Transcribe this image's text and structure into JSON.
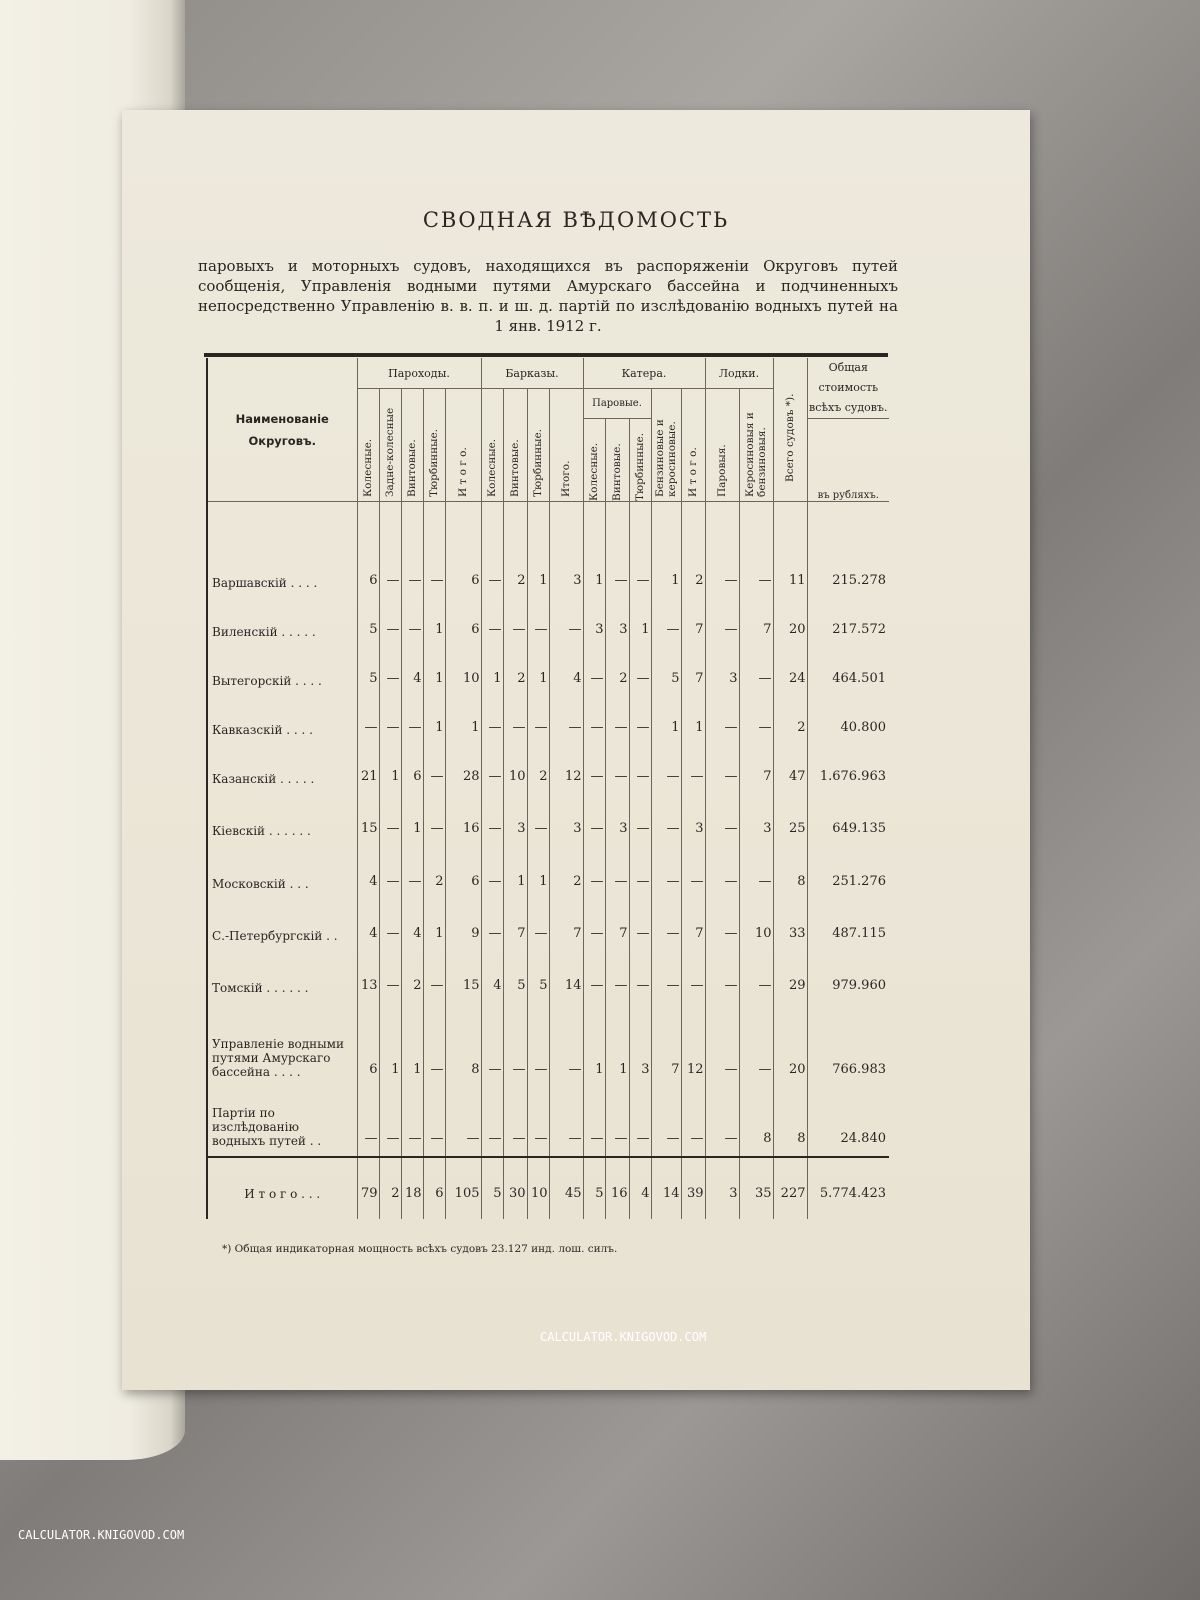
{
  "document": {
    "title": "СВОДНАЯ ВѢДОМОСТЬ",
    "subtitle": "паровыхъ и моторныхъ судовъ, находящихся въ распоряженiи Округовъ путей сообщенiя, Управленiя водными путями Амурскаго бассейна и подчиненныхъ непосредственно Управленiю в. в. п. и ш. д. партiй по изслѣдованiю водныхъ путей на 1 янв. 1912 г.",
    "footnote": "*) Общая индикаторная мощность всѣхъ судовъ 23.127 инд. лош. силъ."
  },
  "table": {
    "name_header": "Наименованiе Округовъ.",
    "groups": {
      "steamers": "Пароходы.",
      "barges": "Барказы.",
      "launches": "Катера.",
      "launches_steam": "Паровые.",
      "boats": "Лодки."
    },
    "columns": [
      "Колесные.",
      "Задне-колесные",
      "Винтовые.",
      "Тюрбинные.",
      "И т о г о.",
      "Колесные.",
      "Винтовые.",
      "Тюрбинные.",
      "Итого.",
      "Колесные.",
      "Винтовые.",
      "Тюрбинные.",
      "Бензиновые и керосиновые.",
      "И т о г о.",
      "Паровыя.",
      "Керосиновыя и бензиновыя.",
      "Всего судовъ *)."
    ],
    "cost_header": "Общая стоимость всѣхъ судовъ.",
    "cost_unit": "въ рубляхъ.",
    "rows": [
      {
        "name": "Варшавскiй . . . .",
        "values": [
          "6",
          "—",
          "—",
          "—",
          "6",
          "—",
          "2",
          "1",
          "3",
          "1",
          "—",
          "—",
          "1",
          "2",
          "—",
          "—",
          "11"
        ],
        "cost": "215.278"
      },
      {
        "name": "Виленскiй . . . . .",
        "values": [
          "5",
          "—",
          "—",
          "1",
          "6",
          "—",
          "—",
          "—",
          "—",
          "3",
          "3",
          "1",
          "—",
          "7",
          "—",
          "7",
          "20"
        ],
        "cost": "217.572"
      },
      {
        "name": "Вытегорскiй . . . .",
        "values": [
          "5",
          "—",
          "4",
          "1",
          "10",
          "1",
          "2",
          "1",
          "4",
          "—",
          "2",
          "—",
          "5",
          "7",
          "3",
          "—",
          "24"
        ],
        "cost": "464.501"
      },
      {
        "name": "Кавказскiй . . . .",
        "values": [
          "—",
          "—",
          "—",
          "1",
          "1",
          "—",
          "—",
          "—",
          "—",
          "—",
          "—",
          "—",
          "1",
          "1",
          "—",
          "—",
          "2"
        ],
        "cost": "40.800"
      },
      {
        "name": "Казанскiй . . . . .",
        "values": [
          "21",
          "1",
          "6",
          "—",
          "28",
          "—",
          "10",
          "2",
          "12",
          "—",
          "—",
          "—",
          "—",
          "—",
          "—",
          "7",
          "47"
        ],
        "cost": "1.676.963"
      },
      {
        "name": "Кiевскiй . . . . . .",
        "values": [
          "15",
          "—",
          "1",
          "—",
          "16",
          "—",
          "3",
          "—",
          "3",
          "—",
          "3",
          "—",
          "—",
          "3",
          "—",
          "3",
          "25"
        ],
        "cost": "649.135"
      },
      {
        "name": "Московскiй . . .",
        "values": [
          "4",
          "—",
          "—",
          "2",
          "6",
          "—",
          "1",
          "1",
          "2",
          "—",
          "—",
          "—",
          "—",
          "—",
          "—",
          "—",
          "8"
        ],
        "cost": "251.276"
      },
      {
        "name": "С.-Петербургскiй . .",
        "values": [
          "4",
          "—",
          "4",
          "1",
          "9",
          "—",
          "7",
          "—",
          "7",
          "—",
          "7",
          "—",
          "—",
          "7",
          "—",
          "10",
          "33"
        ],
        "cost": "487.115"
      },
      {
        "name": "Томскiй . . . . . .",
        "values": [
          "13",
          "—",
          "2",
          "—",
          "15",
          "4",
          "5",
          "5",
          "14",
          "—",
          "—",
          "—",
          "—",
          "—",
          "—",
          "—",
          "29"
        ],
        "cost": "979.960"
      },
      {
        "name": "Управленiе водными путями Амурскаго бассейна . . . .",
        "values": [
          "6",
          "1",
          "1",
          "—",
          "8",
          "—",
          "—",
          "—",
          "—",
          "1",
          "1",
          "3",
          "7",
          "12",
          "—",
          "—",
          "20"
        ],
        "cost": "766.983"
      },
      {
        "name": "Партiи по изслѣдованiю водныхъ путей . .",
        "values": [
          "—",
          "—",
          "—",
          "—",
          "—",
          "—",
          "—",
          "—",
          "—",
          "—",
          "—",
          "—",
          "—",
          "—",
          "—",
          "8",
          "8"
        ],
        "cost": "24.840"
      }
    ],
    "total": {
      "name": "И т о г о . . .",
      "values": [
        "79",
        "2",
        "18",
        "6",
        "105",
        "5",
        "30",
        "10",
        "45",
        "5",
        "16",
        "4",
        "14",
        "39",
        "3",
        "35",
        "227"
      ],
      "cost": "5.774.423"
    }
  },
  "watermarks": {
    "center": "CALCULATOR.KNIGOVOD.COM",
    "corner": "CALCULATOR.KNIGOVOD.COM"
  }
}
